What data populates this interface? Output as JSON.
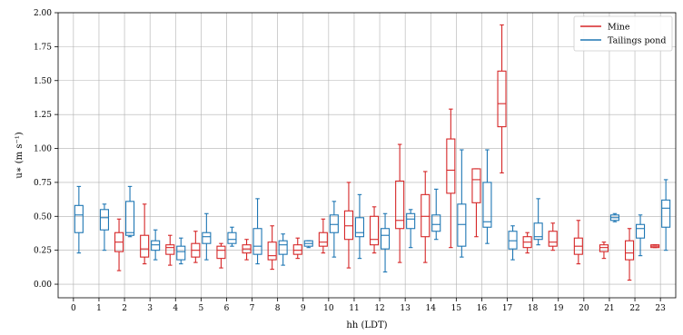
{
  "chart_data": {
    "type": "boxplot",
    "xlabel": "hh (LDT)",
    "ylabel": "u∗ (m s⁻¹)",
    "ylim": [
      -0.1,
      2.0
    ],
    "yticks": [
      "0.00",
      "0.25",
      "0.50",
      "0.75",
      "1.00",
      "1.25",
      "1.50",
      "1.75",
      "2.00"
    ],
    "ytick_values": [
      0,
      0.25,
      0.5,
      0.75,
      1.0,
      1.25,
      1.5,
      1.75,
      2.0
    ],
    "categories": [
      "0",
      "1",
      "2",
      "3",
      "4",
      "5",
      "6",
      "7",
      "8",
      "9",
      "10",
      "11",
      "12",
      "13",
      "14",
      "15",
      "16",
      "17",
      "18",
      "19",
      "20",
      "21",
      "22",
      "23"
    ],
    "grid": true,
    "legend": "top-right",
    "colors": {
      "Mine": "#d62728",
      "Tailings pond": "#1f77b4"
    },
    "series": [
      {
        "name": "Mine",
        "boxes": [
          null,
          null,
          {
            "min": 0.1,
            "q1": 0.24,
            "median": 0.31,
            "q3": 0.38,
            "max": 0.48
          },
          {
            "min": 0.15,
            "q1": 0.2,
            "median": 0.26,
            "q3": 0.36,
            "max": 0.59
          },
          {
            "min": 0.14,
            "q1": 0.22,
            "median": 0.27,
            "q3": 0.29,
            "max": 0.36
          },
          {
            "min": 0.16,
            "q1": 0.2,
            "median": 0.25,
            "q3": 0.3,
            "max": 0.39
          },
          {
            "min": 0.12,
            "q1": 0.19,
            "median": 0.25,
            "q3": 0.28,
            "max": 0.3
          },
          {
            "min": 0.18,
            "q1": 0.23,
            "median": 0.26,
            "q3": 0.29,
            "max": 0.33
          },
          {
            "min": 0.11,
            "q1": 0.18,
            "median": 0.21,
            "q3": 0.31,
            "max": 0.43
          },
          {
            "min": 0.19,
            "q1": 0.22,
            "median": 0.25,
            "q3": 0.29,
            "max": 0.34
          },
          {
            "min": 0.23,
            "q1": 0.28,
            "median": 0.31,
            "q3": 0.38,
            "max": 0.48
          },
          {
            "min": 0.12,
            "q1": 0.33,
            "median": 0.43,
            "q3": 0.54,
            "max": 0.75
          },
          {
            "min": 0.23,
            "q1": 0.29,
            "median": 0.33,
            "q3": 0.5,
            "max": 0.57
          },
          {
            "min": 0.16,
            "q1": 0.41,
            "median": 0.47,
            "q3": 0.76,
            "max": 1.03
          },
          {
            "min": 0.16,
            "q1": 0.35,
            "median": 0.5,
            "q3": 0.66,
            "max": 0.83
          },
          {
            "min": 0.27,
            "q1": 0.67,
            "median": 0.84,
            "q3": 1.07,
            "max": 1.29
          },
          {
            "min": 0.35,
            "q1": 0.6,
            "median": 0.77,
            "q3": 0.85,
            "max": 0.85
          },
          {
            "min": 0.82,
            "q1": 1.16,
            "median": 1.33,
            "q3": 1.57,
            "max": 1.91
          },
          {
            "min": 0.23,
            "q1": 0.27,
            "median": 0.31,
            "q3": 0.35,
            "max": 0.38
          },
          {
            "min": 0.25,
            "q1": 0.28,
            "median": 0.31,
            "q3": 0.39,
            "max": 0.45
          },
          {
            "min": 0.15,
            "q1": 0.22,
            "median": 0.28,
            "q3": 0.34,
            "max": 0.47
          },
          {
            "min": 0.19,
            "q1": 0.24,
            "median": 0.27,
            "q3": 0.29,
            "max": 0.31
          },
          {
            "min": 0.03,
            "q1": 0.18,
            "median": 0.23,
            "q3": 0.32,
            "max": 0.41
          },
          {
            "min": 0.27,
            "q1": 0.27,
            "median": 0.28,
            "q3": 0.29,
            "max": 0.29
          }
        ]
      },
      {
        "name": "Tailings pond",
        "boxes": [
          {
            "min": 0.23,
            "q1": 0.38,
            "median": 0.51,
            "q3": 0.58,
            "max": 0.72
          },
          {
            "min": 0.25,
            "q1": 0.4,
            "median": 0.49,
            "q3": 0.55,
            "max": 0.59
          },
          {
            "min": 0.35,
            "q1": 0.36,
            "median": 0.38,
            "q3": 0.61,
            "max": 0.72
          },
          {
            "min": 0.18,
            "q1": 0.25,
            "median": 0.29,
            "q3": 0.32,
            "max": 0.4
          },
          {
            "min": 0.15,
            "q1": 0.18,
            "median": 0.24,
            "q3": 0.28,
            "max": 0.34
          },
          {
            "min": 0.18,
            "q1": 0.3,
            "median": 0.35,
            "q3": 0.38,
            "max": 0.52
          },
          {
            "min": 0.28,
            "q1": 0.3,
            "median": 0.33,
            "q3": 0.38,
            "max": 0.42
          },
          {
            "min": 0.15,
            "q1": 0.22,
            "median": 0.28,
            "q3": 0.41,
            "max": 0.63
          },
          {
            "min": 0.14,
            "q1": 0.22,
            "median": 0.29,
            "q3": 0.32,
            "max": 0.37
          },
          {
            "min": 0.27,
            "q1": 0.28,
            "median": 0.3,
            "q3": 0.32,
            "max": 0.32
          },
          {
            "min": 0.2,
            "q1": 0.38,
            "median": 0.44,
            "q3": 0.51,
            "max": 0.61
          },
          {
            "min": 0.19,
            "q1": 0.35,
            "median": 0.38,
            "q3": 0.49,
            "max": 0.66
          },
          {
            "min": 0.09,
            "q1": 0.26,
            "median": 0.36,
            "q3": 0.41,
            "max": 0.52
          },
          {
            "min": 0.27,
            "q1": 0.41,
            "median": 0.48,
            "q3": 0.52,
            "max": 0.55
          },
          {
            "min": 0.33,
            "q1": 0.39,
            "median": 0.44,
            "q3": 0.51,
            "max": 0.7
          },
          {
            "min": 0.2,
            "q1": 0.28,
            "median": 0.44,
            "q3": 0.59,
            "max": 0.99
          },
          {
            "min": 0.3,
            "q1": 0.42,
            "median": 0.46,
            "q3": 0.75,
            "max": 0.99
          },
          {
            "min": 0.18,
            "q1": 0.26,
            "median": 0.32,
            "q3": 0.39,
            "max": 0.43
          },
          {
            "min": 0.29,
            "q1": 0.33,
            "median": 0.35,
            "q3": 0.45,
            "max": 0.63
          },
          null,
          null,
          {
            "min": 0.46,
            "q1": 0.47,
            "median": 0.49,
            "q3": 0.51,
            "max": 0.52
          },
          {
            "min": 0.21,
            "q1": 0.34,
            "median": 0.41,
            "q3": 0.44,
            "max": 0.51
          },
          {
            "min": 0.25,
            "q1": 0.42,
            "median": 0.56,
            "q3": 0.62,
            "max": 0.77
          }
        ]
      }
    ]
  }
}
